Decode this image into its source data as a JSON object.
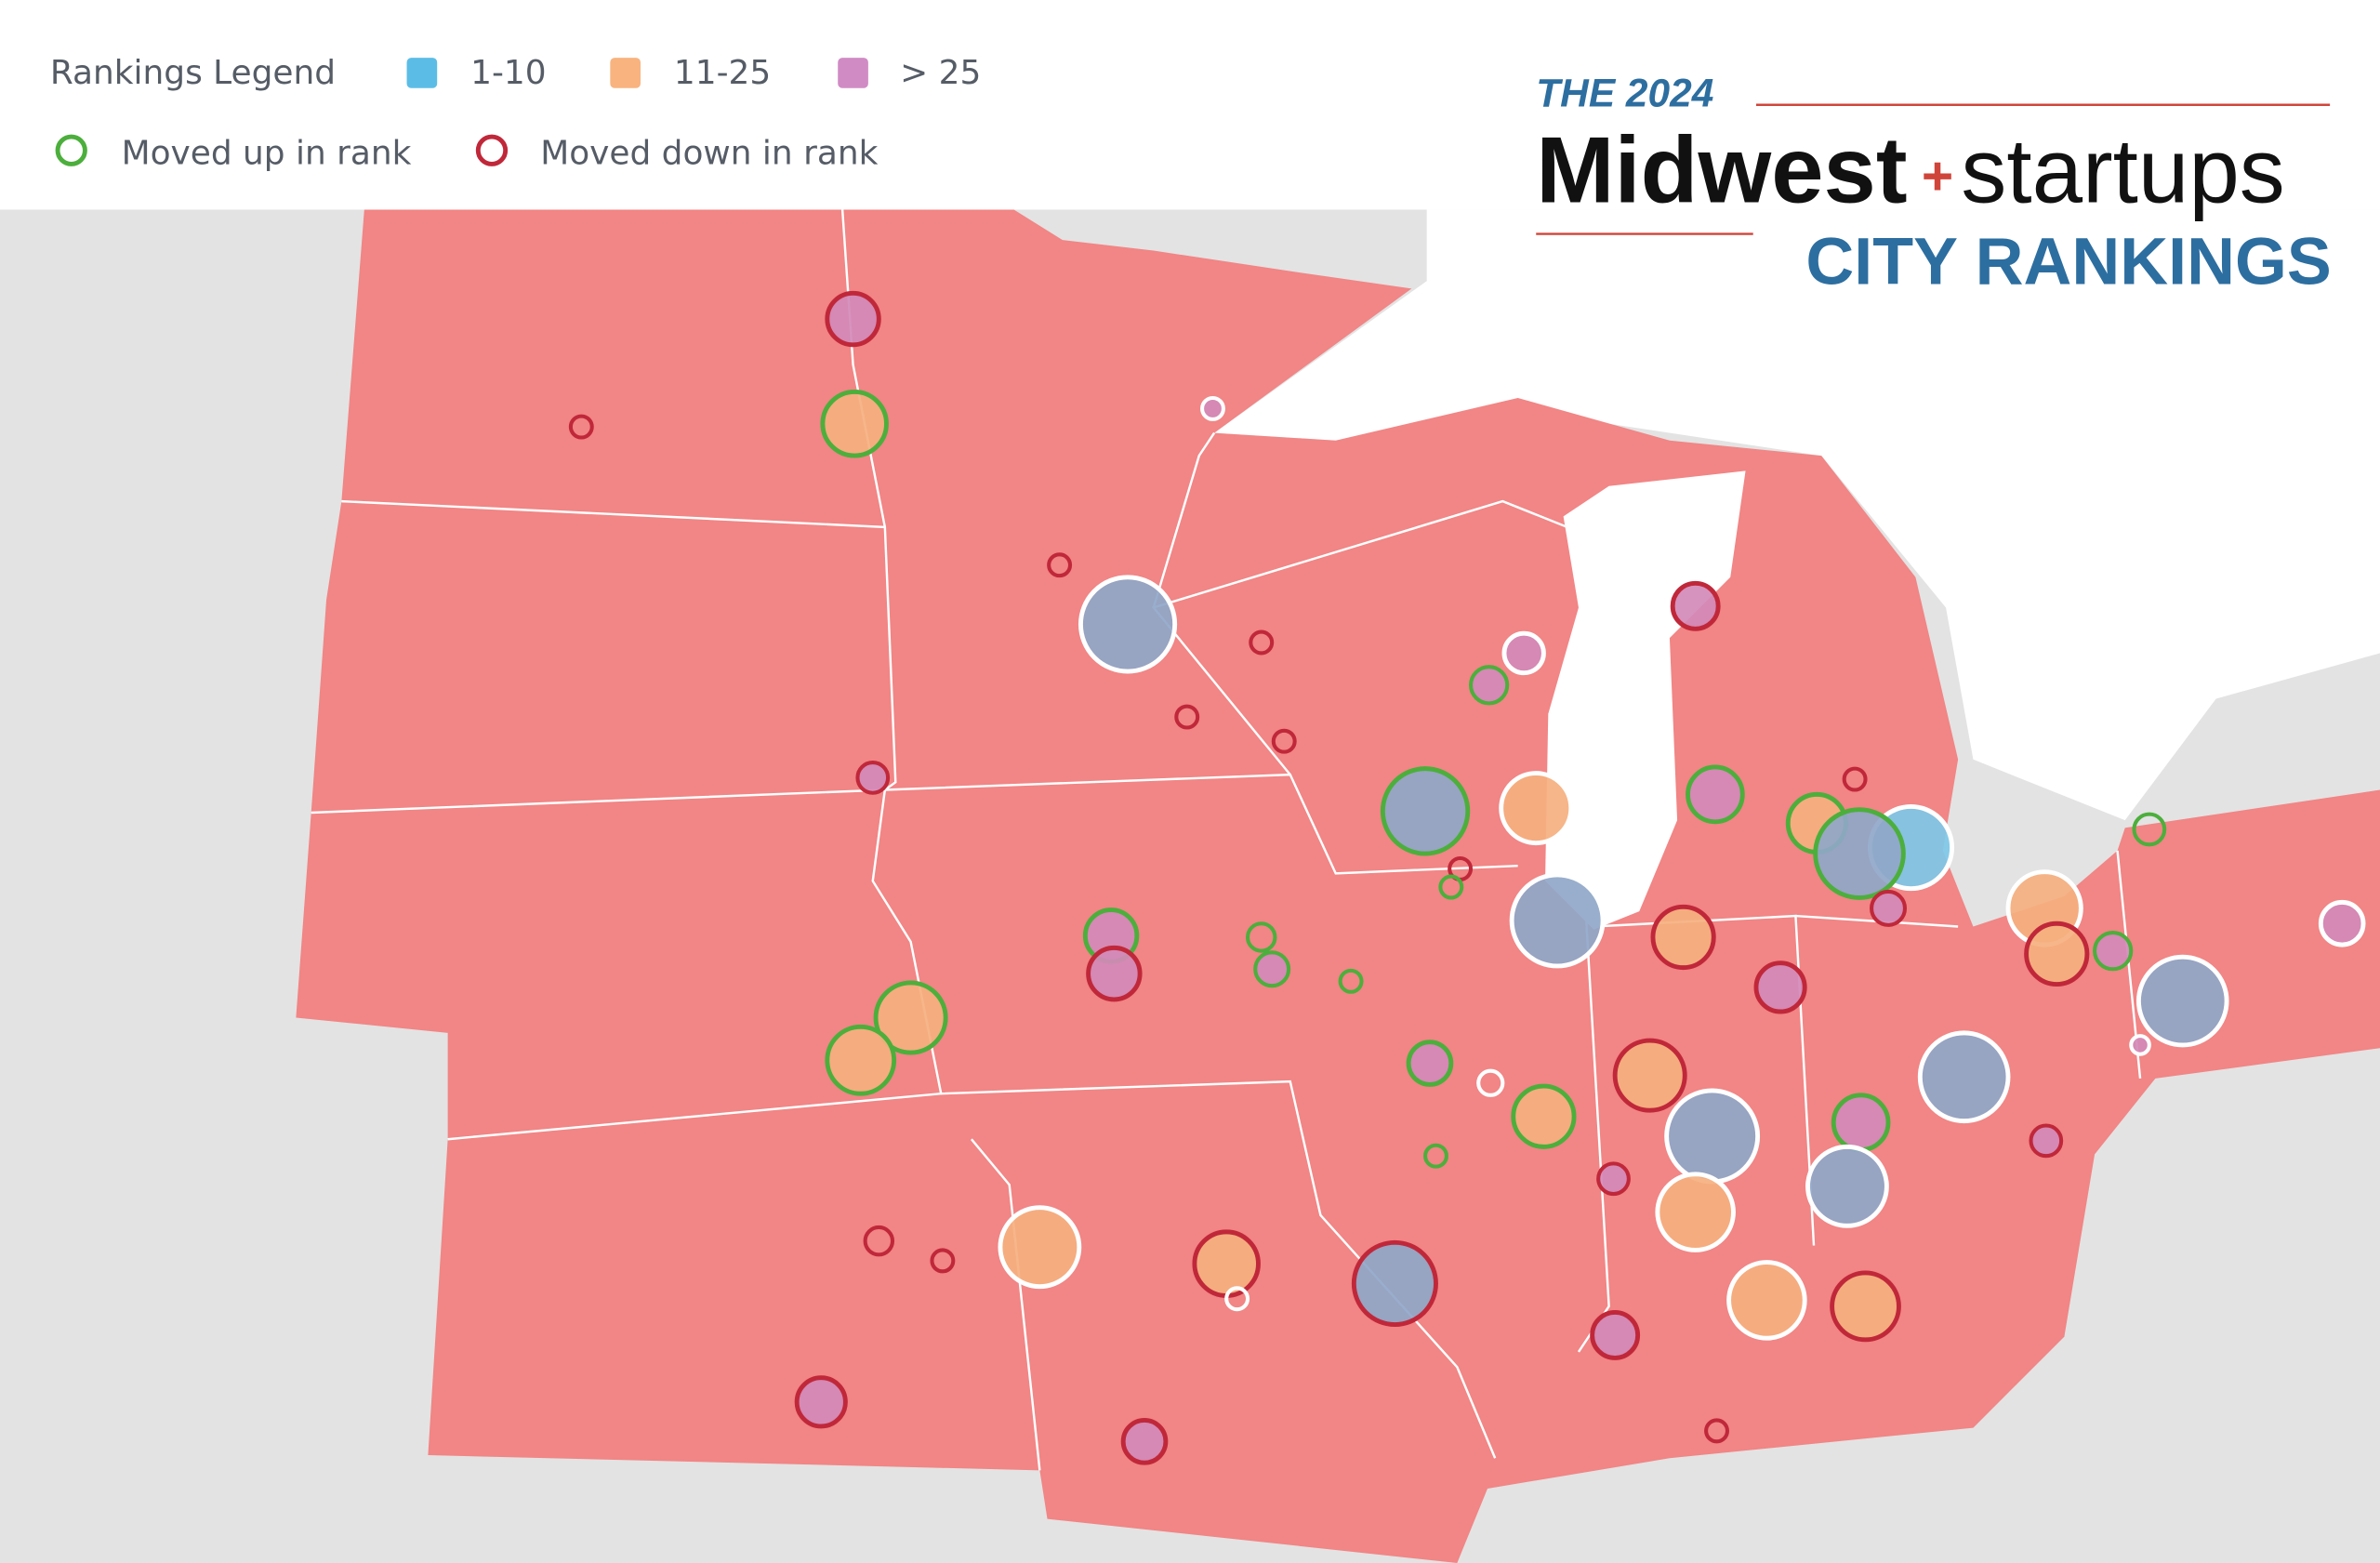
{
  "legend": {
    "title": "Rankings Legend",
    "ranks": [
      "1-10",
      "11-25",
      "> 25"
    ],
    "movement": [
      "Moved up in rank",
      "Moved down in rank"
    ]
  },
  "logo": {
    "year": "THE 2024",
    "brand": "Midwest",
    "plus": "+",
    "name": "startups",
    "subtitle": "CITY RANKINGS"
  }
}
